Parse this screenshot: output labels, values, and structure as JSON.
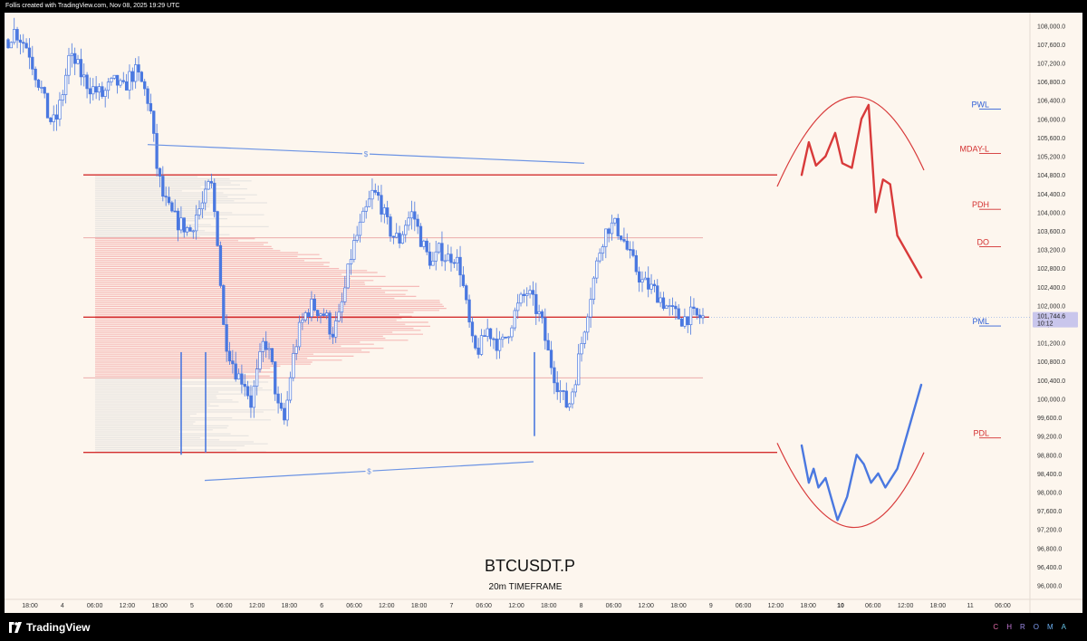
{
  "header": {
    "credit": "Follis created with TradingView.com, Nov 08, 2025 19:29 UTC"
  },
  "footer": {
    "brand": "TradingView",
    "chroma_letters": [
      "C",
      "H",
      "R",
      "O",
      "M",
      "A"
    ],
    "chroma_colors": [
      "#e06aa6",
      "#c77ad8",
      "#9b8ae6",
      "#7f9bef",
      "#6aaef0",
      "#67c6e9"
    ]
  },
  "colors": {
    "background": "#fdf6ee",
    "candle_blue": "#4a78e0",
    "level_red": "#d32f2f",
    "level_light_red": "#e9a0a0",
    "trend_blue": "#6b93e4",
    "volume_profile_red": "#f4a8a8",
    "volume_profile_grey": "#d9d9d9",
    "projection_blue": "#4a78e0",
    "projection_red": "#d83a3a",
    "label_blue": "#2f5fd6",
    "label_red": "#d32f2f",
    "price_tag_bg": "#c9c6ec",
    "axis_text": "#333333"
  },
  "chart_data": {
    "type": "candlestick",
    "symbol": "BTCUSDT.P",
    "subtitle": "20m TIMEFRAME",
    "ylim": [
      95700,
      108200
    ],
    "y_ticks": [
      "108,000.0",
      "107,600.0",
      "107,200.0",
      "106,800.0",
      "106,400.0",
      "106,000.0",
      "105,600.0",
      "105,200.0",
      "104,800.0",
      "104,400.0",
      "104,000.0",
      "103,600.0",
      "103,200.0",
      "102,800.0",
      "102,400.0",
      "102,000.0",
      "101,600.0",
      "101,200.0",
      "100,800.0",
      "100,400.0",
      "100,000.0",
      "99,600.0",
      "99,200.0",
      "98,800.0",
      "98,400.0",
      "98,000.0",
      "97,600.0",
      "97,200.0",
      "96,800.0",
      "96,400.0",
      "96,000.0"
    ],
    "x_ticks": [
      "18:00",
      "4",
      "06:00",
      "12:00",
      "18:00",
      "5",
      "06:00",
      "12:00",
      "18:00",
      "6",
      "06:00",
      "12:00",
      "18:00",
      "7",
      "06:00",
      "12:00",
      "18:00",
      "8",
      "06:00",
      "12:00",
      "18:00",
      "9",
      "06:00",
      "12:00",
      "18:00",
      "10",
      "06:00",
      "12:00",
      "18:00",
      "11",
      "06:00"
    ],
    "x_tick_bold": "10",
    "current_price": "101,744.6",
    "countdown": "10:12",
    "close_path": [
      [
        0,
        107700
      ],
      [
        1,
        107900
      ],
      [
        2,
        107700
      ],
      [
        3,
        107500
      ],
      [
        4,
        107000
      ],
      [
        5,
        106600
      ],
      [
        6,
        106000
      ],
      [
        7,
        105900
      ],
      [
        8,
        106500
      ],
      [
        9,
        107300
      ],
      [
        10,
        107200
      ],
      [
        11,
        106900
      ],
      [
        12,
        106700
      ],
      [
        13,
        106600
      ],
      [
        14,
        106500
      ],
      [
        15,
        106700
      ],
      [
        16,
        106800
      ],
      [
        17,
        106600
      ],
      [
        18,
        106900
      ],
      [
        19,
        107000
      ],
      [
        20,
        106700
      ],
      [
        21,
        106300
      ],
      [
        22,
        105000
      ],
      [
        23,
        104300
      ],
      [
        24,
        104000
      ],
      [
        25,
        103800
      ],
      [
        26,
        103700
      ],
      [
        27,
        103600
      ],
      [
        28,
        104000
      ],
      [
        29,
        104200
      ],
      [
        30,
        104700
      ],
      [
        31,
        103500
      ],
      [
        32,
        101400
      ],
      [
        33,
        100900
      ],
      [
        34,
        100500
      ],
      [
        35,
        100400
      ],
      [
        36,
        99900
      ],
      [
        37,
        100600
      ],
      [
        38,
        101300
      ],
      [
        39,
        100800
      ],
      [
        40,
        99800
      ],
      [
        41,
        99500
      ],
      [
        42,
        100700
      ],
      [
        43,
        101400
      ],
      [
        44,
        101800
      ],
      [
        45,
        102000
      ],
      [
        46,
        101900
      ],
      [
        47,
        101800
      ],
      [
        48,
        101400
      ],
      [
        49,
        101700
      ],
      [
        50,
        102400
      ],
      [
        51,
        103200
      ],
      [
        52,
        103600
      ],
      [
        53,
        104000
      ],
      [
        54,
        104400
      ],
      [
        55,
        104300
      ],
      [
        56,
        103800
      ],
      [
        57,
        103500
      ],
      [
        58,
        103400
      ],
      [
        59,
        103800
      ],
      [
        60,
        104000
      ],
      [
        61,
        103500
      ],
      [
        62,
        103100
      ],
      [
        63,
        102900
      ],
      [
        64,
        103200
      ],
      [
        65,
        103000
      ],
      [
        66,
        103100
      ],
      [
        67,
        102800
      ],
      [
        68,
        101900
      ],
      [
        69,
        101000
      ],
      [
        70,
        101100
      ],
      [
        71,
        101500
      ],
      [
        72,
        101300
      ],
      [
        73,
        101100
      ],
      [
        74,
        101400
      ],
      [
        75,
        101800
      ],
      [
        76,
        102100
      ],
      [
        77,
        102300
      ],
      [
        78,
        102000
      ],
      [
        79,
        101700
      ],
      [
        80,
        101000
      ],
      [
        81,
        100500
      ],
      [
        82,
        100100
      ],
      [
        83,
        99800
      ],
      [
        84,
        100400
      ],
      [
        85,
        101200
      ],
      [
        86,
        102000
      ],
      [
        87,
        102700
      ],
      [
        88,
        103400
      ],
      [
        89,
        103700
      ],
      [
        90,
        103700
      ],
      [
        91,
        103500
      ],
      [
        92,
        103100
      ],
      [
        93,
        102800
      ],
      [
        94,
        102500
      ],
      [
        95,
        102400
      ],
      [
        96,
        102300
      ],
      [
        97,
        102100
      ],
      [
        98,
        101900
      ],
      [
        99,
        101800
      ],
      [
        100,
        101700
      ],
      [
        101,
        101800
      ],
      [
        102,
        101750
      ],
      [
        103,
        101744
      ]
    ],
    "levels": [
      {
        "id": "range-high",
        "price": 104800,
        "from": "5",
        "to": "18:00",
        "style": "solid-red"
      },
      {
        "id": "range-mid",
        "price": 101750,
        "from": "5",
        "to": "18:00",
        "style": "solid-red"
      },
      {
        "id": "range-low",
        "price": 98850,
        "from": "5",
        "to": "18:00",
        "style": "solid-red"
      },
      {
        "id": "upper-faint",
        "price": 103450,
        "from": "5",
        "to": "18:00",
        "style": "faint-red"
      },
      {
        "id": "lower-faint",
        "price": 100450,
        "from": "5",
        "to": "18:00",
        "style": "faint-red"
      }
    ],
    "trendlines": [
      {
        "id": "upper-trendline",
        "label": "$",
        "from": [
          104100,
          "12:00"
        ],
        "to": [
          105050,
          "18:00"
        ]
      },
      {
        "id": "lower-trendline",
        "label": "$",
        "from": [
          98250,
          "06:00"
        ],
        "to": [
          98650,
          "12:00"
        ]
      }
    ],
    "level_labels": [
      {
        "text": "PWL",
        "price": 106250,
        "color": "blue"
      },
      {
        "text": "MDAY-L",
        "price": 105300,
        "color": "red"
      },
      {
        "text": "PDH",
        "price": 104100,
        "color": "red"
      },
      {
        "text": "DO",
        "price": 103300,
        "color": "red"
      },
      {
        "text": "PML",
        "price": 101600,
        "color": "blue"
      },
      {
        "text": "PDL",
        "price": 99200,
        "color": "red"
      }
    ],
    "projections": [
      {
        "id": "bearish-projection",
        "color": "red",
        "points": [
          [
            0,
            104800
          ],
          [
            0.06,
            105500
          ],
          [
            0.12,
            105000
          ],
          [
            0.2,
            105200
          ],
          [
            0.28,
            105700
          ],
          [
            0.34,
            105050
          ],
          [
            0.42,
            104950
          ],
          [
            0.5,
            106000
          ],
          [
            0.56,
            106300
          ],
          [
            0.62,
            104000
          ],
          [
            0.68,
            104700
          ],
          [
            0.74,
            104600
          ],
          [
            0.8,
            103500
          ],
          [
            1,
            102600
          ]
        ]
      },
      {
        "id": "bullish-projection",
        "color": "blue",
        "points": [
          [
            0,
            99000
          ],
          [
            0.06,
            98200
          ],
          [
            0.1,
            98500
          ],
          [
            0.14,
            98100
          ],
          [
            0.2,
            98300
          ],
          [
            0.3,
            97400
          ],
          [
            0.38,
            97900
          ],
          [
            0.46,
            98800
          ],
          [
            0.52,
            98600
          ],
          [
            0.58,
            98200
          ],
          [
            0.64,
            98400
          ],
          [
            0.7,
            98100
          ],
          [
            0.8,
            98500
          ],
          [
            1,
            100300
          ]
        ]
      }
    ]
  }
}
